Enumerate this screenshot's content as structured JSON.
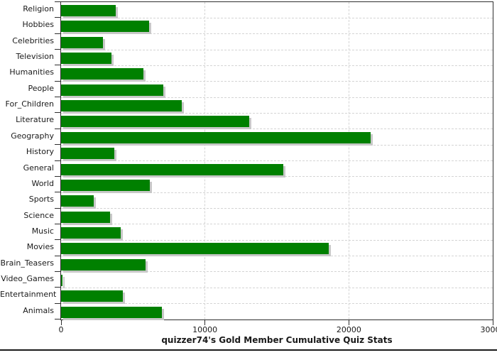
{
  "chart_data": {
    "type": "bar",
    "orientation": "horizontal",
    "title": "quizzer74's Gold Member Cumulative Quiz Stats",
    "categories": [
      "Religion",
      "Hobbies",
      "Celebrities",
      "Television",
      "Humanities",
      "People",
      "For_Children",
      "Literature",
      "Geography",
      "History",
      "General",
      "World",
      "Sports",
      "Science",
      "Music",
      "Movies",
      "Brain_Teasers",
      "Video_Games",
      "Entertainment",
      "Animals"
    ],
    "values": [
      3800,
      6100,
      2900,
      3500,
      5700,
      7100,
      8400,
      13100,
      21500,
      3700,
      15450,
      6150,
      2250,
      3400,
      4150,
      18600,
      5850,
      100,
      4300,
      7000
    ],
    "xlim": [
      0,
      30000
    ],
    "x_ticks": [
      0,
      10000,
      20000,
      30000
    ],
    "x_tick_labels": [
      "0",
      "10000",
      "20000",
      "30000"
    ],
    "xlabel": "",
    "ylabel": "",
    "legend": "none",
    "grid": "dashed horizontal lines at every category boundary, dashed vertical lines at 10000 and 20000",
    "colors": {
      "bar": "#008000",
      "bar_shadow": "#c8c8c8",
      "grid_line": "#d4d4d4",
      "axis_line": "#2e2e2e",
      "text": "#1a1a1a",
      "background": "#ffffff",
      "bottom_rule": "#1a1a1a"
    }
  }
}
